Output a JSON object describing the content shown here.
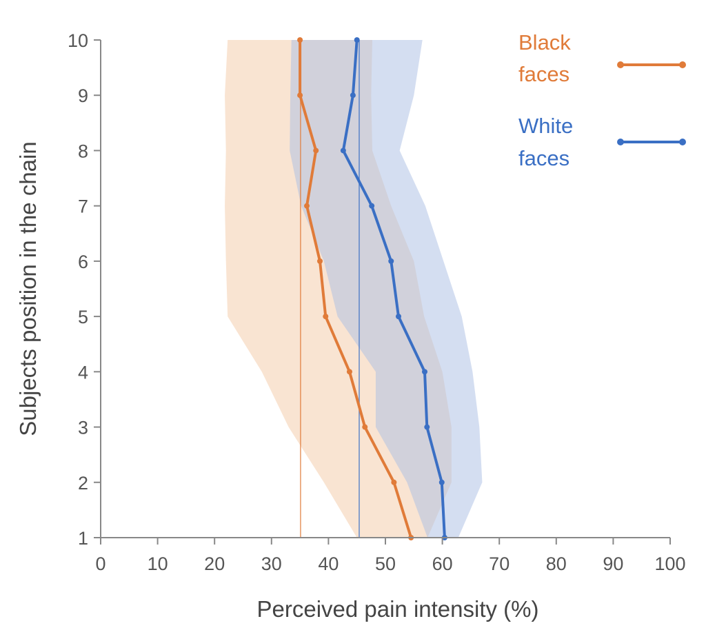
{
  "chart_data": {
    "type": "line",
    "title": "",
    "xlabel": "Perceived pain intensity (%)",
    "ylabel": "Subjects position in the chain",
    "xlim": [
      0,
      100
    ],
    "ylim": [
      1,
      10
    ],
    "xticks": [
      "0",
      "10",
      "20",
      "30",
      "40",
      "50",
      "60",
      "70",
      "80",
      "90",
      "100"
    ],
    "yticks": [
      "1",
      "2",
      "3",
      "4",
      "5",
      "6",
      "7",
      "8",
      "9",
      "10"
    ],
    "grid": false,
    "legend_position": "top-right",
    "y": [
      10,
      9,
      8,
      7,
      6,
      5,
      4,
      3,
      2,
      1
    ],
    "series": [
      {
        "name": "Black faces",
        "legend_lines": [
          "Black",
          "faces"
        ],
        "color": "#E07B39",
        "values": [
          35.0,
          35.0,
          37.8,
          36.2,
          38.5,
          39.5,
          43.7,
          46.4,
          51.5,
          54.5
        ],
        "band_low": [
          22.3,
          21.8,
          22.0,
          21.8,
          22.0,
          22.3,
          28.3,
          33.0,
          39.2,
          45.0
        ],
        "band_high": [
          47.7,
          47.5,
          47.7,
          51.0,
          55.0,
          56.8,
          60.0,
          61.6,
          61.6,
          57.4
        ],
        "reference": 35.1
      },
      {
        "name": "White faces",
        "legend_lines": [
          "White",
          "faces"
        ],
        "color": "#3A6FC4",
        "values": [
          45.0,
          44.3,
          42.6,
          47.6,
          51.0,
          52.3,
          56.9,
          57.3,
          59.9,
          60.4
        ],
        "band_low": [
          33.5,
          33.3,
          33.2,
          35.2,
          39.2,
          41.6,
          48.3,
          48.3,
          53.8,
          57.4
        ],
        "band_high": [
          56.5,
          55.0,
          52.5,
          57.0,
          60.2,
          63.4,
          65.3,
          66.5,
          67.0,
          62.8
        ],
        "reference": 45.4
      }
    ]
  }
}
